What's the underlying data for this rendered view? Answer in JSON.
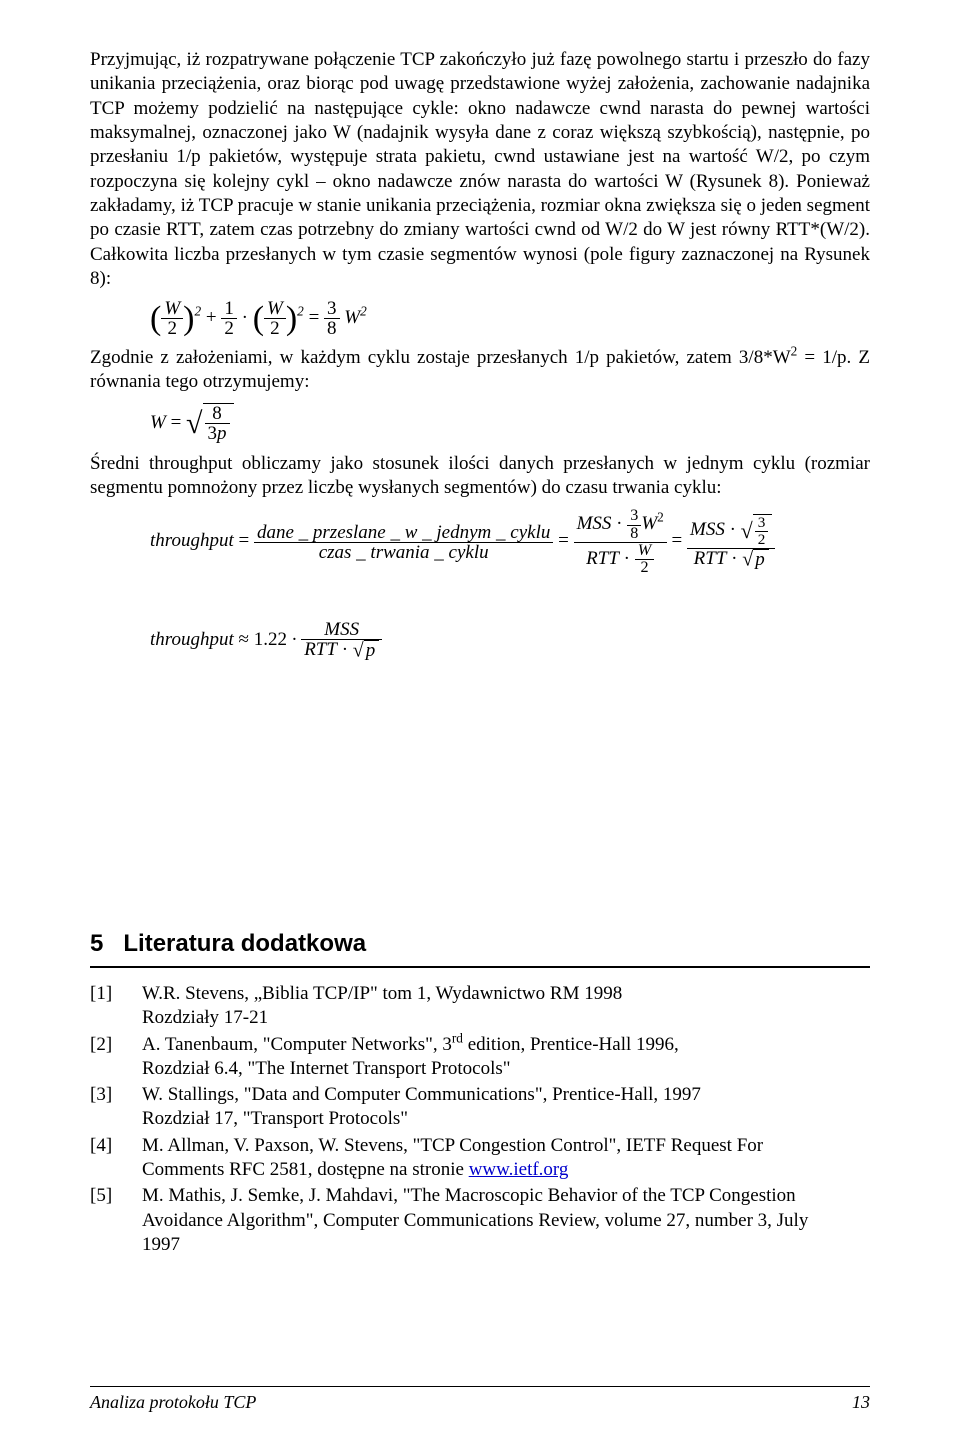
{
  "para1": "Przyjmując, iż rozpatrywane połączenie TCP zakończyło już fazę powolnego startu i przeszło do fazy unikania przeciążenia, oraz biorąc pod uwagę przedstawione wyżej założenia, zachowanie nadajnika TCP możemy podzielić na następujące cykle: okno nadawcze cwnd narasta do pewnej wartości maksymalnej, oznaczonej jako W (nadajnik wysyła dane z coraz większą szybkością), następnie, po przesłaniu 1/p pakietów, występuje strata pakietu, cwnd ustawiane jest na wartość W/2, po czym rozpoczyna się kolejny cykl – okno nadawcze znów narasta do wartości W (Rysunek 8). Ponieważ zakładamy, iż TCP pracuje w stanie unikania przeciążenia, rozmiar okna zwiększa się o jeden segment po czasie RTT, zatem czas potrzebny do zmiany wartości cwnd od W/2 do W jest równy RTT*(W/2). Całkowita liczba przesłanych w tym czasie segmentów wynosi (pole figury zaznaczonej na Rysunek 8):",
  "para2a": "Zgodnie z założeniami, w każdym cyklu zostaje przesłanych 1/p pakietów, zatem 3/8*W",
  "para2b": " = 1/p. Z równania tego otrzymujemy:",
  "para3": "Średni throughput obliczamy jako stosunek ilości danych przesłanych w jednym cyklu (rozmiar segmentu pomnożony przez liczbę wysłanych segmentów) do czasu trwania cyklu:",
  "section_num": "5",
  "section_title": "Literatura dodatkowa",
  "refs": [
    {
      "tag": "[1]",
      "lines": [
        "W.R. Stevens, „Biblia TCP/IP\" tom 1, Wydawnictwo RM 1998",
        "Rozdziały 17-21"
      ]
    },
    {
      "tag": "[2]",
      "lines": [
        "A. Tanenbaum, \"Computer Networks\", 3<sup>rd</sup> edition, Prentice-Hall 1996,",
        "Rozdział 6.4, \"The Internet Transport Protocols\""
      ]
    },
    {
      "tag": "[3]",
      "lines": [
        "W. Stallings, \"Data and Computer Communications\", Prentice-Hall, 1997",
        "Rozdział 17, \"Transport Protocols\""
      ]
    },
    {
      "tag": "[4]",
      "lines": [
        "M. Allman, V. Paxson, W. Stevens, \"TCP Congestion Control\", IETF Request For",
        "Comments RFC 2581, dostępne na stronie <a class=\"link\" data-name=\"ietf-link\" data-interactable=\"true\">www.ietf.org</a>"
      ]
    },
    {
      "tag": "[5]",
      "lines": [
        "M. Mathis, J. Semke, J. Mahdavi, \"The Macroscopic Behavior of the TCP Congestion",
        "Avoidance Algorithm\", Computer Communications Review, volume 27, number 3, July",
        "1997"
      ]
    }
  ],
  "footer_left": "Analiza protokołu TCP",
  "footer_page": "13",
  "formula1": {
    "lhs_paren_num": "W",
    "lhs_paren_den": "2",
    "plus_num": "1",
    "plus_den": "2",
    "rhs_paren_num": "W",
    "rhs_paren_den": "2",
    "eq_num": "3",
    "eq_den": "8",
    "eq_tail": "W",
    "exp": "2"
  },
  "formula2": {
    "W": "W",
    "eq": "=",
    "num": "8",
    "den": "3p"
  },
  "formula3": {
    "lhs": "throughput",
    "num1": "dane _ przeslane _ w _ jednym _ cyklu",
    "den1": "czas _ trwania _ cyklu",
    "mss": "MSS",
    "f38_n": "3",
    "f38_d": "8",
    "Wsq": "W",
    "rtt": "RTT",
    "W2_n": "W",
    "W2_d": "2",
    "f32_n": "3",
    "f32_d": "2",
    "p": "p"
  },
  "formula4": {
    "lhs": "throughput",
    "approx": "≈",
    "coef": "1.22",
    "mss": "MSS",
    "rtt": "RTT",
    "p": "p"
  }
}
